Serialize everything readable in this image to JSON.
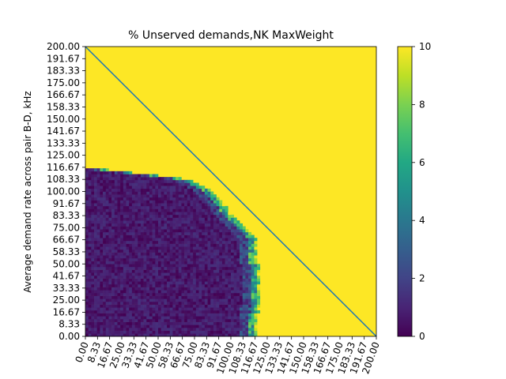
{
  "chart_data": {
    "type": "heatmap",
    "title": "% Unserved demands,NK MaxWeight",
    "xlabel": "",
    "ylabel": "Average demand rate across pair B-D, kHz",
    "x_range": [
      0,
      200
    ],
    "y_range": [
      0,
      200
    ],
    "x_ticks": [
      "0.00",
      "8.33",
      "16.67",
      "25.00",
      "33.33",
      "41.67",
      "50.00",
      "58.33",
      "66.67",
      "75.00",
      "83.33",
      "91.67",
      "100.00",
      "108.33",
      "116.67",
      "125.00",
      "133.33",
      "141.67",
      "150.00",
      "158.33",
      "166.67",
      "175.00",
      "183.33",
      "191.67",
      "200.00"
    ],
    "y_ticks": [
      "0.00",
      "8.33",
      "16.67",
      "25.00",
      "33.33",
      "41.67",
      "50.00",
      "58.33",
      "66.67",
      "75.00",
      "83.33",
      "91.67",
      "100.00",
      "108.33",
      "116.67",
      "125.00",
      "133.33",
      "141.67",
      "150.00",
      "158.33",
      "166.67",
      "175.00",
      "183.33",
      "191.67",
      "200.00"
    ],
    "colormap": "viridis",
    "colorbar": {
      "min": 0,
      "max": 10,
      "ticks": [
        "0",
        "2",
        "4",
        "6",
        "8",
        "10"
      ]
    },
    "grid_cells": 100,
    "description_values": {
      "saturated_value": 10,
      "served_region_value": 0.5,
      "served_region_boundary": [
        {
          "y": 0,
          "x_max": 117
        },
        {
          "y": 8.33,
          "x_max": 115
        },
        {
          "y": 16.67,
          "x_max": 117
        },
        {
          "y": 33.33,
          "x_max": 117
        },
        {
          "y": 50,
          "x_max": 117
        },
        {
          "y": 66.67,
          "x_max": 116
        },
        {
          "y": 75,
          "x_max": 107
        },
        {
          "y": 83.33,
          "x_max": 99
        },
        {
          "y": 91.67,
          "x_max": 94
        },
        {
          "y": 100,
          "x_max": 86
        },
        {
          "y": 108.33,
          "x_max": 70
        },
        {
          "y": 116.67,
          "x_max": 0
        }
      ]
    },
    "overlay_line": {
      "from": [
        0,
        200
      ],
      "to": [
        200,
        0
      ],
      "color": "#1f77b4"
    }
  }
}
